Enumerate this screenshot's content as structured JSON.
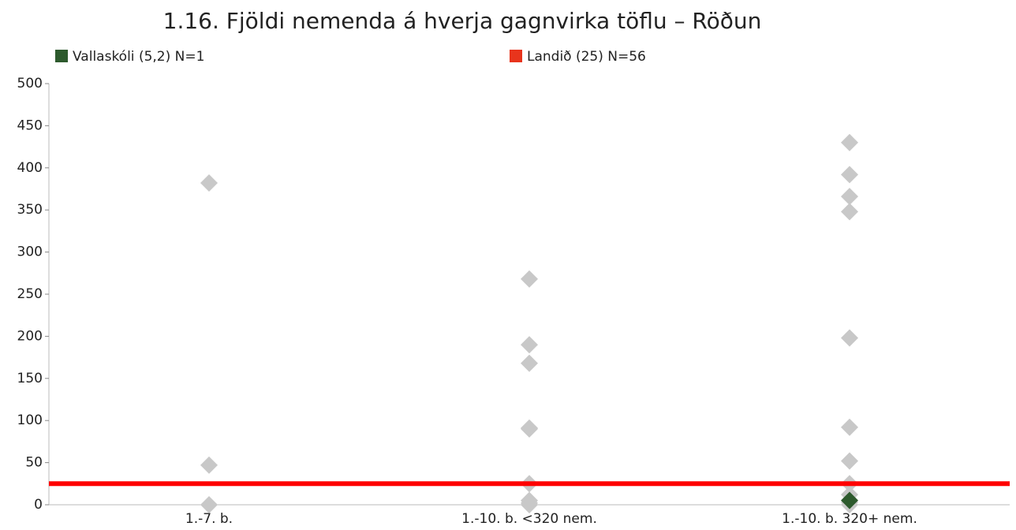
{
  "chart_data": {
    "type": "strip",
    "title": "1.16. Fjöldi nemenda á hverja gagnvirka töflu – Röðun",
    "categories": [
      "1.-7. b.",
      "1.-10. b. <320 nem.",
      "1.-10. b. 320+ nem."
    ],
    "point_values": [
      [
        382,
        47,
        0
      ],
      [
        268,
        190,
        168,
        91,
        90,
        25,
        5,
        2,
        0
      ],
      [
        430,
        392,
        366,
        348,
        198,
        92,
        52,
        25,
        12,
        3,
        0
      ]
    ],
    "point_color": "#c8c8c8",
    "highlight": {
      "name": "Vallaskóli (5,2) N=1",
      "color": "#2d5a2d",
      "category": 2,
      "value": 5.2
    },
    "reference": {
      "name": "Landið (25) N=56",
      "color": "#e8341c",
      "line_color": "#ff0000",
      "value": 25
    },
    "ylim": [
      0,
      500
    ],
    "yticks": [
      0,
      50,
      100,
      150,
      200,
      250,
      300,
      350,
      400,
      450,
      500
    ]
  }
}
